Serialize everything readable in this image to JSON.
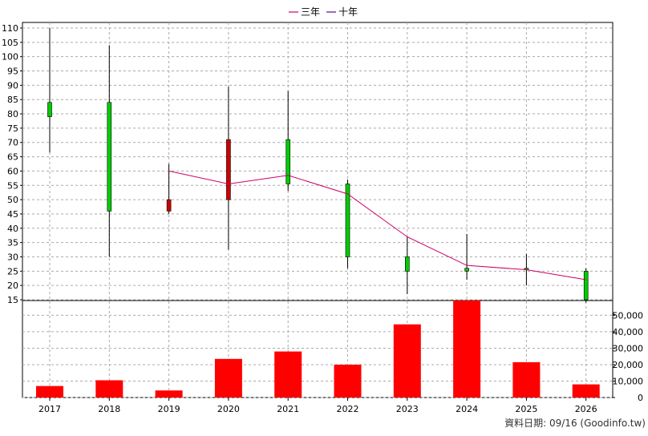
{
  "chart_data": {
    "type": "candlestick_with_volume",
    "legend": [
      {
        "label": "三年",
        "color": "#cc0066"
      },
      {
        "label": "十年",
        "color": "#660099"
      }
    ],
    "categories": [
      "2017",
      "2018",
      "2019",
      "2020",
      "2021",
      "2022",
      "2023",
      "2024",
      "2025",
      "2026"
    ],
    "price_axis": {
      "min": 15,
      "max": 110,
      "step": 5
    },
    "volume_axis": {
      "min": 0,
      "max": 50000,
      "step": 10000,
      "tick_labels": [
        "0",
        "10,000",
        "20,000",
        "30,000",
        "40,000",
        "50,000"
      ]
    },
    "candles": [
      {
        "year": "2017",
        "open": 79,
        "close": 84,
        "high": 110,
        "low": 66.5
      },
      {
        "year": "2018",
        "open": 46,
        "close": 84,
        "high": 104,
        "low": 30
      },
      {
        "year": "2019",
        "open": 50,
        "close": 46,
        "high": 62.5,
        "low": 45
      },
      {
        "year": "2020",
        "open": 71,
        "close": 50,
        "high": 89.5,
        "low": 32.5
      },
      {
        "year": "2021",
        "open": 55.5,
        "close": 71,
        "high": 88,
        "low": 53
      },
      {
        "year": "2022",
        "open": 30,
        "close": 55.5,
        "high": 57,
        "low": 26
      },
      {
        "year": "2023",
        "open": 25,
        "close": 30,
        "high": 37,
        "low": 17
      },
      {
        "year": "2024",
        "open": 25,
        "close": 26,
        "high": 38,
        "low": 22
      },
      {
        "year": "2025",
        "open": 25.5,
        "close": 26,
        "high": 31,
        "low": 20
      },
      {
        "year": "2026",
        "open": 15,
        "close": 25,
        "high": 26,
        "low": 14
      }
    ],
    "ma_line": {
      "name": "三年",
      "x": [
        "2019",
        "2020",
        "2021",
        "2022",
        "2023",
        "2024",
        "2025",
        "2026"
      ],
      "values": [
        60,
        55.5,
        58.5,
        52,
        37,
        27,
        25.5,
        22
      ]
    },
    "volume": [
      7000,
      10500,
      4300,
      23500,
      28000,
      20000,
      44500,
      59000,
      21500,
      8000
    ],
    "up_color": "#00cc00",
    "down_color": "#cc0000",
    "volume_color": "#ff0000",
    "source_note": "資料日期: 09/16  (Goodinfo.tw)"
  }
}
